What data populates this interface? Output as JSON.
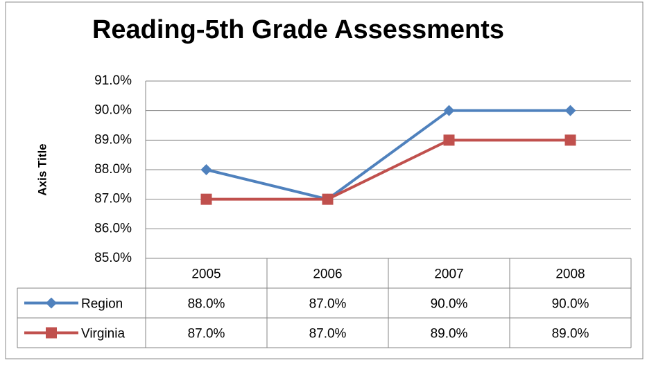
{
  "chart_data": {
    "type": "line",
    "title": "Reading-5th Grade Assessments",
    "y_axis_label": "Axis Title",
    "categories": [
      "2005",
      "2006",
      "2007",
      "2008"
    ],
    "series": [
      {
        "name": "Region",
        "color": "#4f81bd",
        "marker": "diamond",
        "values": [
          88,
          87,
          90,
          90
        ],
        "value_labels": [
          "88.0%",
          "87.0%",
          "90.0%",
          "90.0%"
        ]
      },
      {
        "name": "Virginia",
        "color": "#c0504d",
        "marker": "square",
        "values": [
          87,
          87,
          89,
          89
        ],
        "value_labels": [
          "87.0%",
          "87.0%",
          "89.0%",
          "89.0%"
        ]
      }
    ],
    "ylim": [
      85,
      91
    ],
    "yticks": [
      {
        "value": 85,
        "label": "85.0%"
      },
      {
        "value": 86,
        "label": "86.0%"
      },
      {
        "value": 87,
        "label": "87.0%"
      },
      {
        "value": 88,
        "label": "88.0%"
      },
      {
        "value": 89,
        "label": "89.0%"
      },
      {
        "value": 90,
        "label": "90.0%"
      },
      {
        "value": 91,
        "label": "91.0%"
      }
    ],
    "grid": true,
    "data_table": true
  }
}
